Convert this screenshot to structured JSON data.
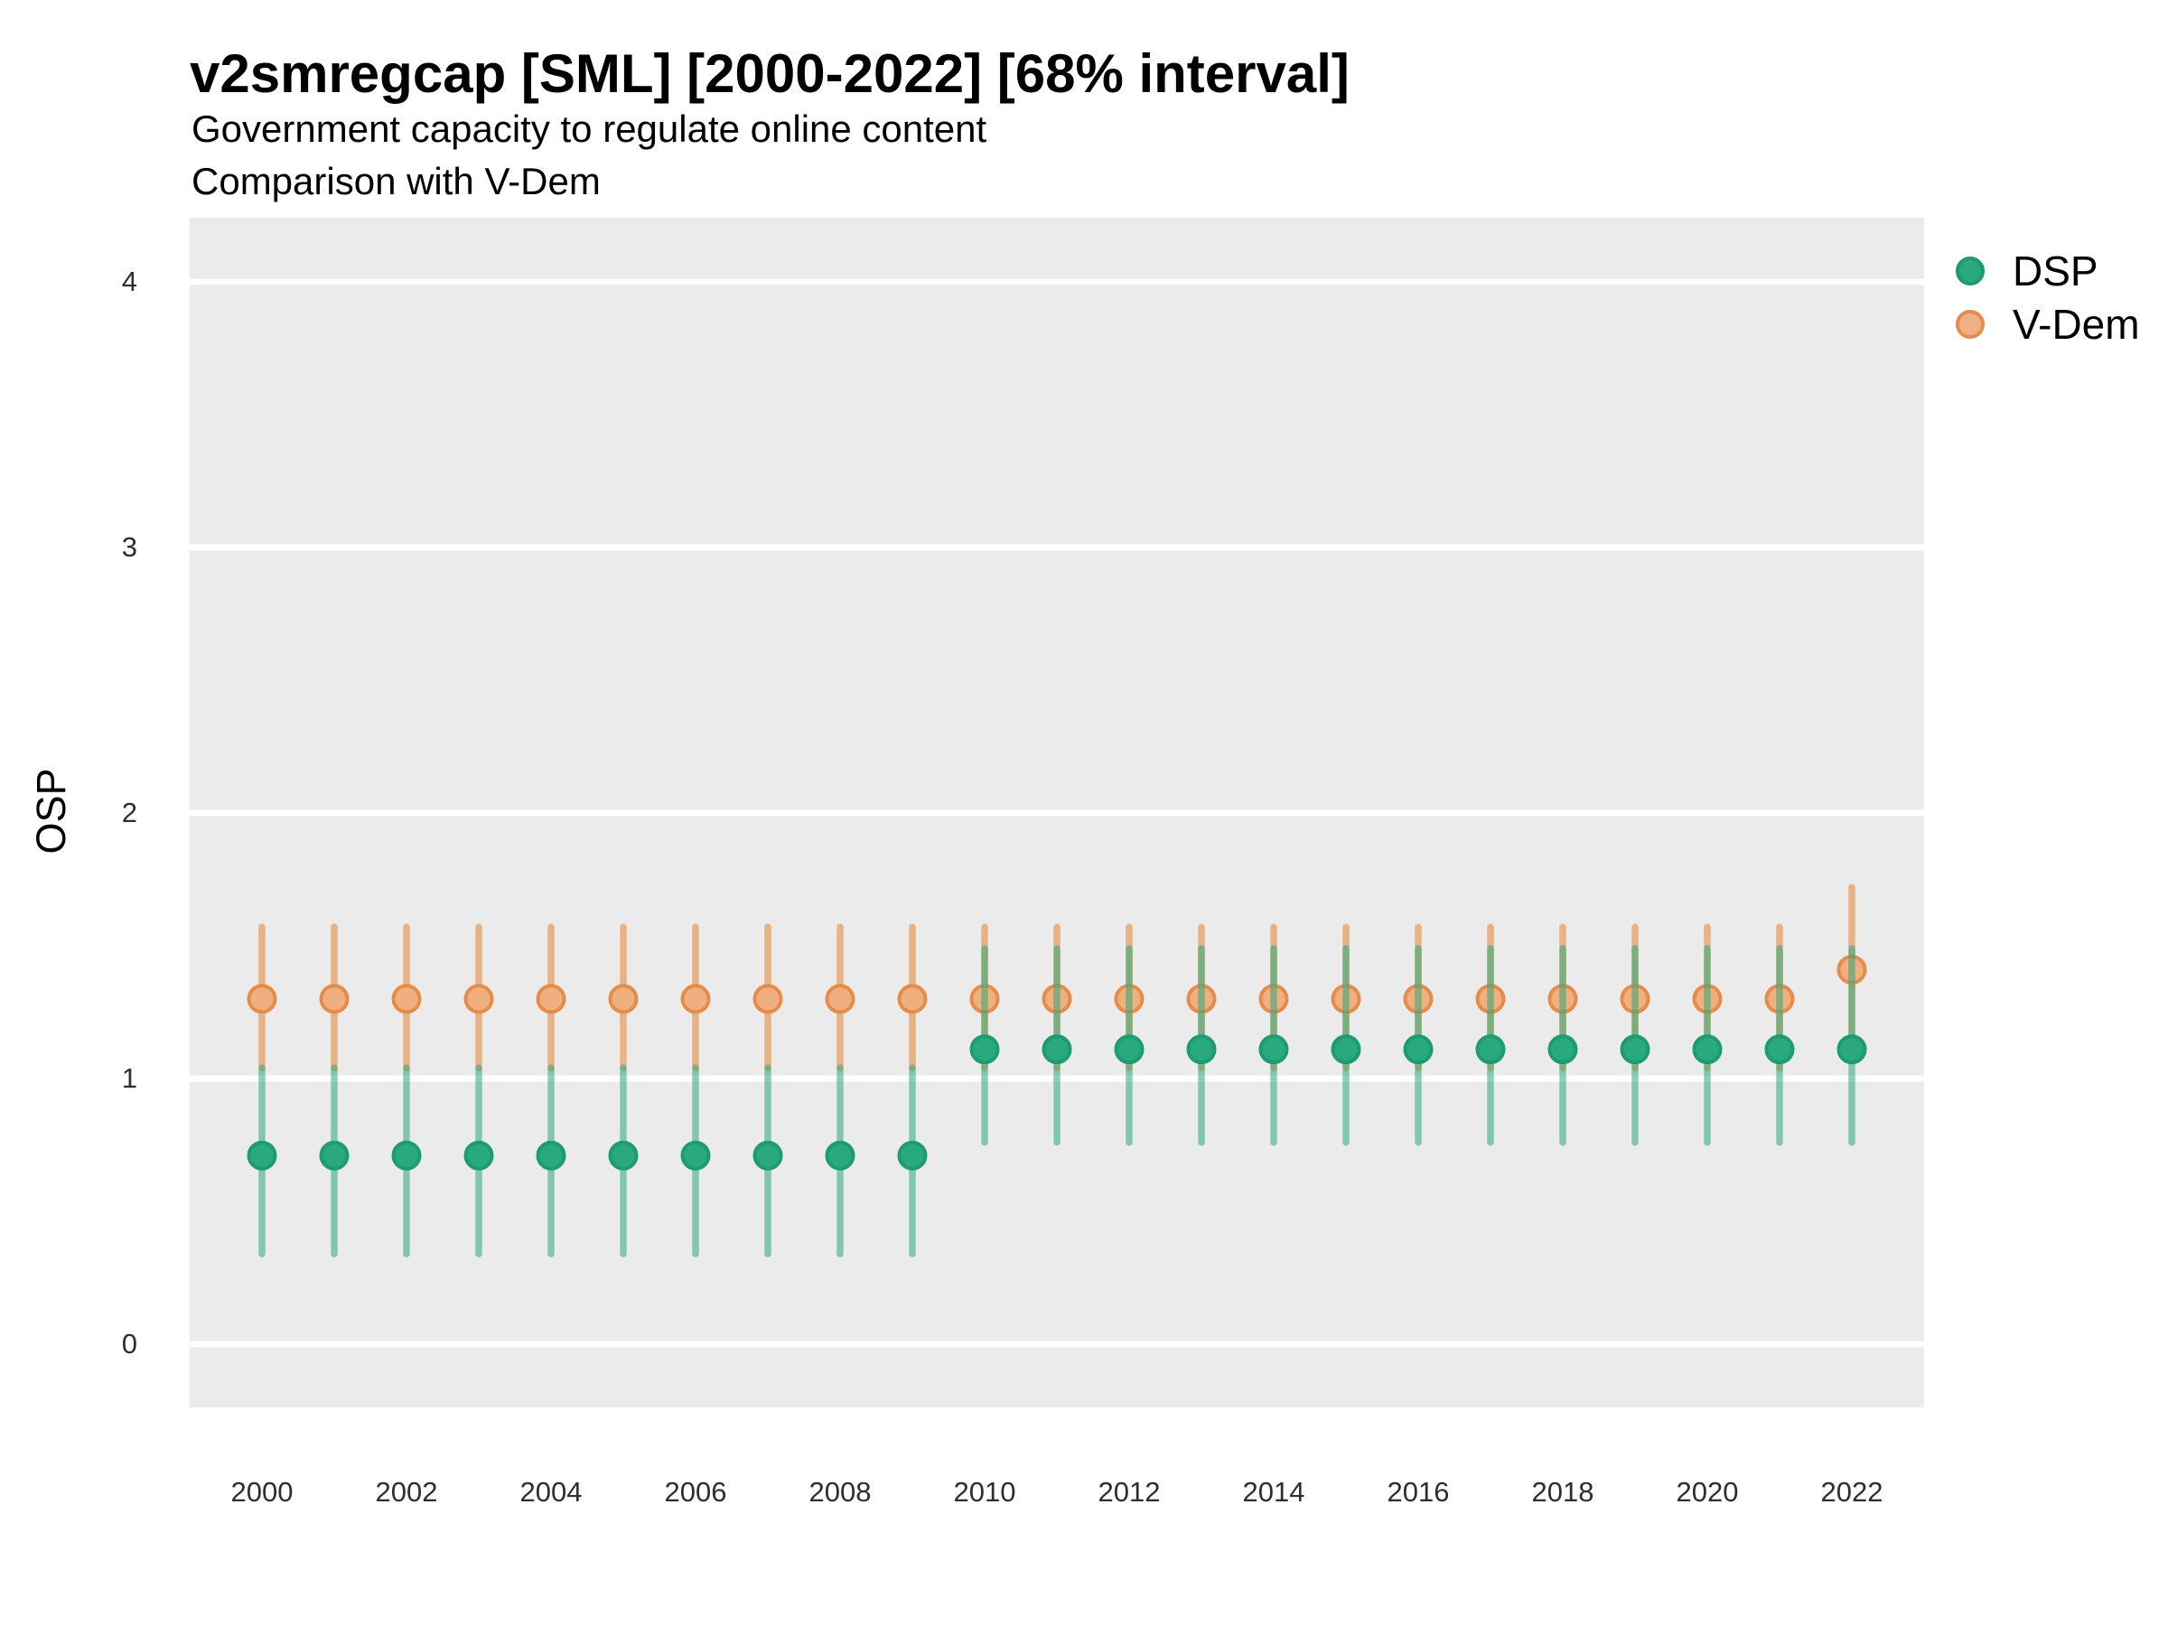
{
  "header": {
    "title": "v2smregcap [SML] [2000-2022] [68% interval]",
    "subtitle1": "Government capacity to regulate online content",
    "subtitle2": "Comparison with V-Dem"
  },
  "axis": {
    "y_title": "OSP",
    "y_ticks": [
      "4",
      "3",
      "2",
      "1",
      "0"
    ],
    "x_ticks": [
      "2000",
      "2002",
      "2004",
      "2006",
      "2008",
      "2010",
      "2012",
      "2014",
      "2016",
      "2018",
      "2020",
      "2022"
    ]
  },
  "legend": {
    "items": [
      {
        "label": "DSP",
        "color": "#2aa87e",
        "border": "#1a9a6e"
      },
      {
        "label": "V-Dem",
        "color": "#f1b083",
        "border": "#e28d4c"
      }
    ]
  },
  "colors": {
    "panel_background": "#ebebeb",
    "gridline": "#ffffff",
    "dsp_point": "#2aa87e",
    "dsp_point_border": "#1e9c71",
    "dsp_interval": "rgba(42,168,126,0.55)",
    "vdem_point": "#efaf7f",
    "vdem_point_border": "#e68c4a",
    "vdem_interval": "rgba(231,140,60,0.6)"
  },
  "chart_data": {
    "type": "pointrange",
    "title": "v2smregcap [SML] [2000-2022] [68% interval]",
    "subtitle": "Government capacity to regulate online content — Comparison with V-Dem",
    "interval": "68%",
    "xlabel": "",
    "ylabel": "OSP",
    "ylim_gridlines": [
      0,
      1,
      2,
      3,
      4
    ],
    "y_axis_range": [
      -0.24,
      4.23
    ],
    "grid": "horizontal-major-only",
    "legend_position": "right",
    "x": [
      2000,
      2001,
      2002,
      2003,
      2004,
      2005,
      2006,
      2007,
      2008,
      2009,
      2010,
      2011,
      2012,
      2013,
      2014,
      2015,
      2016,
      2017,
      2018,
      2019,
      2020,
      2021,
      2022
    ],
    "series": [
      {
        "name": "V-Dem",
        "key": "vdem",
        "point_color": "#efaf7f",
        "point_border": "#e68c4a",
        "line_color": "rgba(231,140,60,0.6)",
        "values": [
          1.3,
          1.3,
          1.3,
          1.3,
          1.3,
          1.3,
          1.3,
          1.3,
          1.3,
          1.3,
          1.3,
          1.3,
          1.3,
          1.3,
          1.3,
          1.3,
          1.3,
          1.3,
          1.3,
          1.3,
          1.3,
          1.3,
          1.41
        ],
        "lower": [
          1.04,
          1.04,
          1.04,
          1.04,
          1.04,
          1.04,
          1.04,
          1.04,
          1.04,
          1.04,
          1.04,
          1.04,
          1.04,
          1.04,
          1.04,
          1.04,
          1.04,
          1.04,
          1.04,
          1.04,
          1.04,
          1.04,
          1.12
        ],
        "upper": [
          1.57,
          1.57,
          1.57,
          1.57,
          1.57,
          1.57,
          1.57,
          1.57,
          1.57,
          1.57,
          1.57,
          1.57,
          1.57,
          1.57,
          1.57,
          1.57,
          1.57,
          1.57,
          1.57,
          1.57,
          1.57,
          1.57,
          1.72
        ]
      },
      {
        "name": "DSP",
        "key": "dsp",
        "point_color": "#2aa87e",
        "point_border": "#1e9c71",
        "line_color": "rgba(42,168,126,0.55)",
        "values": [
          0.71,
          0.71,
          0.71,
          0.71,
          0.71,
          0.71,
          0.71,
          0.71,
          0.71,
          0.71,
          1.11,
          1.11,
          1.11,
          1.11,
          1.11,
          1.11,
          1.11,
          1.11,
          1.11,
          1.11,
          1.11,
          1.11,
          1.11
        ],
        "lower": [
          0.34,
          0.34,
          0.34,
          0.34,
          0.34,
          0.34,
          0.34,
          0.34,
          0.34,
          0.34,
          0.76,
          0.76,
          0.76,
          0.76,
          0.76,
          0.76,
          0.76,
          0.76,
          0.76,
          0.76,
          0.76,
          0.76,
          0.76
        ],
        "upper": [
          1.04,
          1.04,
          1.04,
          1.04,
          1.04,
          1.04,
          1.04,
          1.04,
          1.04,
          1.04,
          1.49,
          1.49,
          1.49,
          1.49,
          1.49,
          1.49,
          1.49,
          1.49,
          1.49,
          1.49,
          1.49,
          1.49,
          1.49
        ]
      }
    ]
  }
}
